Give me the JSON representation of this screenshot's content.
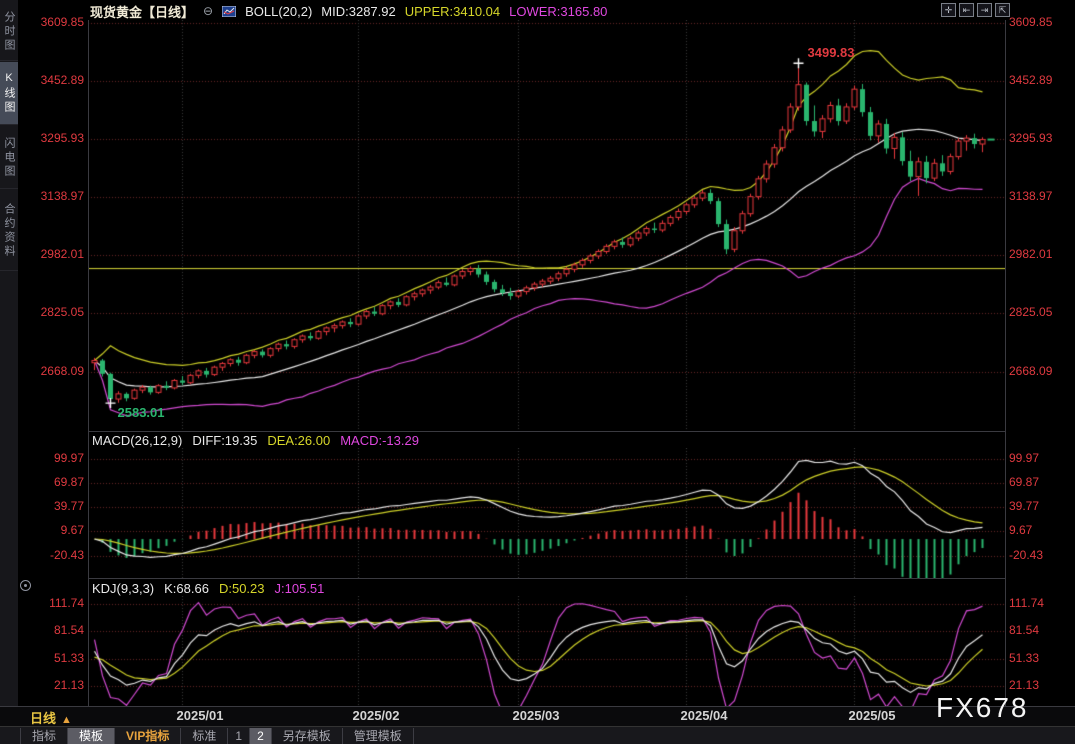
{
  "header": {
    "title": "现货黄金",
    "period_tag": "【日线】",
    "collapse_icon": "⊖",
    "boll_label": "BOLL(20,2)",
    "mid_label": "MID:3287.92",
    "upper_label": "UPPER:3410.04",
    "lower_label": "LOWER:3165.80",
    "window_icons": [
      "十字光标",
      "区间放大",
      "缩放",
      "还原"
    ]
  },
  "sidebar": {
    "tabs": [
      {
        "label": "分时图",
        "selected": false
      },
      {
        "label": "K线图",
        "selected": true
      },
      {
        "label": "闪电图",
        "selected": false
      },
      {
        "label": "合约资料",
        "selected": false
      }
    ]
  },
  "macd_header": {
    "label": "MACD(26,12,9)",
    "diff": "DIFF:19.35",
    "dea": "DEA:26.00",
    "macd": "MACD:-13.29"
  },
  "kdj_header": {
    "label": "KDJ(9,3,3)",
    "k": "K:68.66",
    "d": "D:50.23",
    "j": "J:105.51"
  },
  "annotations": {
    "high_label": "3499.83",
    "low_label": "2583.01"
  },
  "x_axis": {
    "period_label": "日线",
    "period_arrow": "▲"
  },
  "watermark": "FX678",
  "bottom_bar": {
    "items": [
      {
        "label": "指标"
      },
      {
        "label": "模板",
        "selected": true
      },
      {
        "label": "VIP指标",
        "vip": true
      },
      {
        "label": "标准"
      },
      {
        "label": "1",
        "num": true
      },
      {
        "label": "2",
        "num": true,
        "selected": true
      },
      {
        "label": "另存模板"
      },
      {
        "label": "管理模板"
      }
    ]
  },
  "colors": {
    "up": "#e8383d",
    "down": "#2ab56e",
    "axis_red": "#e03a40",
    "band_upper": "#cdd028",
    "band_mid": "#e9e9e9",
    "band_lower": "#d24ad2",
    "grid_red": "#6a2626",
    "grid_gray": "#3a3a3a",
    "hline_yellow": "#d8d838",
    "hist_up": "#e8383d",
    "hist_down": "#2ab56e",
    "diff_line": "#e9e9e9",
    "dea_line": "#cdd028",
    "k_line": "#e9e9e9",
    "d_line": "#cdd028",
    "j_line": "#d24ad2",
    "cross_marker": "#ffffff"
  },
  "chart_data": {
    "type": "candlestick",
    "title": "现货黄金 日线 (Spot Gold Daily) with BOLL(20,2), MACD(26,12,9), KDJ(9,3,3)",
    "y_ticks_main": [
      3609.85,
      3452.89,
      3295.93,
      3138.97,
      2982.01,
      2825.05,
      2668.09
    ],
    "y_ticks_macd": [
      99.97,
      69.87,
      39.77,
      9.67,
      -20.43
    ],
    "y_ticks_kdj": [
      111.74,
      81.54,
      51.33,
      21.13
    ],
    "x_months": [
      {
        "label": "2025/01",
        "index": 11
      },
      {
        "label": "2025/02",
        "index": 33
      },
      {
        "label": "2025/03",
        "index": 53
      },
      {
        "label": "2025/04",
        "index": 74
      },
      {
        "label": "2025/05",
        "index": 95
      }
    ],
    "hline": 2946,
    "annotations": {
      "high": {
        "index": 88,
        "price": 3499.83
      },
      "low": {
        "index": 2,
        "price": 2583.01
      }
    },
    "boll": {
      "period": 20,
      "mult": 2
    },
    "macd": {
      "fast": 12,
      "slow": 26,
      "signal": 9
    },
    "kdj": {
      "n": 9,
      "m1": 3,
      "m2": 3
    },
    "ohlc": [
      [
        2692,
        2705,
        2672,
        2698
      ],
      [
        2698,
        2702,
        2655,
        2662
      ],
      [
        2662,
        2665,
        2583.01,
        2594
      ],
      [
        2594,
        2615,
        2584,
        2608
      ],
      [
        2608,
        2612,
        2588,
        2596
      ],
      [
        2596,
        2622,
        2592,
        2618
      ],
      [
        2618,
        2632,
        2610,
        2626
      ],
      [
        2626,
        2630,
        2606,
        2612
      ],
      [
        2612,
        2634,
        2608,
        2630
      ],
      [
        2630,
        2642,
        2618,
        2624
      ],
      [
        2624,
        2648,
        2620,
        2644
      ],
      [
        2644,
        2656,
        2632,
        2638
      ],
      [
        2638,
        2662,
        2634,
        2658
      ],
      [
        2658,
        2674,
        2650,
        2670
      ],
      [
        2670,
        2678,
        2652,
        2660
      ],
      [
        2660,
        2684,
        2656,
        2680
      ],
      [
        2680,
        2694,
        2670,
        2690
      ],
      [
        2690,
        2704,
        2682,
        2700
      ],
      [
        2700,
        2708,
        2684,
        2692
      ],
      [
        2692,
        2716,
        2688,
        2712
      ],
      [
        2712,
        2726,
        2704,
        2722
      ],
      [
        2722,
        2728,
        2706,
        2712
      ],
      [
        2712,
        2734,
        2706,
        2730
      ],
      [
        2730,
        2746,
        2722,
        2742
      ],
      [
        2742,
        2752,
        2728,
        2736
      ],
      [
        2736,
        2758,
        2730,
        2754
      ],
      [
        2754,
        2768,
        2746,
        2764
      ],
      [
        2764,
        2774,
        2752,
        2758
      ],
      [
        2758,
        2780,
        2754,
        2776
      ],
      [
        2776,
        2790,
        2766,
        2786
      ],
      [
        2786,
        2798,
        2774,
        2792
      ],
      [
        2792,
        2806,
        2784,
        2802
      ],
      [
        2802,
        2812,
        2788,
        2796
      ],
      [
        2796,
        2822,
        2792,
        2818
      ],
      [
        2818,
        2834,
        2810,
        2830
      ],
      [
        2830,
        2842,
        2818,
        2824
      ],
      [
        2824,
        2850,
        2820,
        2846
      ],
      [
        2846,
        2860,
        2836,
        2856
      ],
      [
        2856,
        2866,
        2842,
        2848
      ],
      [
        2848,
        2874,
        2844,
        2870
      ],
      [
        2870,
        2884,
        2860,
        2878
      ],
      [
        2878,
        2892,
        2870,
        2888
      ],
      [
        2888,
        2902,
        2878,
        2896
      ],
      [
        2896,
        2914,
        2890,
        2908
      ],
      [
        2908,
        2922,
        2898,
        2902
      ],
      [
        2902,
        2930,
        2898,
        2926
      ],
      [
        2926,
        2944,
        2918,
        2938
      ],
      [
        2938,
        2952,
        2928,
        2946
      ],
      [
        2946,
        2956,
        2922,
        2930
      ],
      [
        2930,
        2938,
        2902,
        2910
      ],
      [
        2910,
        2916,
        2882,
        2890
      ],
      [
        2890,
        2902,
        2872,
        2880
      ],
      [
        2880,
        2894,
        2862,
        2872
      ],
      [
        2872,
        2890,
        2866,
        2884
      ],
      [
        2884,
        2900,
        2876,
        2894
      ],
      [
        2894,
        2910,
        2886,
        2904
      ],
      [
        2904,
        2918,
        2896,
        2912
      ],
      [
        2912,
        2926,
        2904,
        2920
      ],
      [
        2920,
        2938,
        2912,
        2932
      ],
      [
        2932,
        2950,
        2924,
        2944
      ],
      [
        2944,
        2962,
        2936,
        2956
      ],
      [
        2956,
        2974,
        2948,
        2968
      ],
      [
        2968,
        2986,
        2960,
        2980
      ],
      [
        2980,
        2998,
        2972,
        2992
      ],
      [
        2992,
        3012,
        2986,
        3006
      ],
      [
        3006,
        3024,
        2998,
        3018
      ],
      [
        3018,
        3030,
        3002,
        3010
      ],
      [
        3010,
        3034,
        3004,
        3028
      ],
      [
        3028,
        3048,
        3020,
        3042
      ],
      [
        3042,
        3060,
        3034,
        3054
      ],
      [
        3054,
        3070,
        3042,
        3050
      ],
      [
        3050,
        3076,
        3044,
        3068
      ],
      [
        3068,
        3090,
        3060,
        3084
      ],
      [
        3084,
        3108,
        3076,
        3100
      ],
      [
        3100,
        3124,
        3092,
        3118
      ],
      [
        3118,
        3142,
        3110,
        3136
      ],
      [
        3136,
        3158,
        3128,
        3150
      ],
      [
        3150,
        3160,
        3120,
        3128
      ],
      [
        3128,
        3136,
        3058,
        3066
      ],
      [
        3066,
        3078,
        2985,
        2998
      ],
      [
        2998,
        3058,
        2990,
        3048
      ],
      [
        3048,
        3102,
        3040,
        3094
      ],
      [
        3094,
        3148,
        3086,
        3140
      ],
      [
        3140,
        3196,
        3132,
        3188
      ],
      [
        3188,
        3238,
        3178,
        3228
      ],
      [
        3228,
        3282,
        3218,
        3272
      ],
      [
        3272,
        3330,
        3262,
        3320
      ],
      [
        3320,
        3392,
        3312,
        3382
      ],
      [
        3382,
        3499.83,
        3372,
        3442
      ],
      [
        3442,
        3448,
        3332,
        3344
      ],
      [
        3344,
        3386,
        3302,
        3316
      ],
      [
        3316,
        3360,
        3298,
        3350
      ],
      [
        3350,
        3396,
        3340,
        3386
      ],
      [
        3386,
        3404,
        3332,
        3344
      ],
      [
        3344,
        3392,
        3336,
        3382
      ],
      [
        3382,
        3440,
        3374,
        3430
      ],
      [
        3430,
        3444,
        3356,
        3368
      ],
      [
        3368,
        3382,
        3292,
        3304
      ],
      [
        3304,
        3346,
        3286,
        3336
      ],
      [
        3336,
        3350,
        3256,
        3270
      ],
      [
        3270,
        3312,
        3242,
        3300
      ],
      [
        3300,
        3314,
        3224,
        3236
      ],
      [
        3236,
        3264,
        3182,
        3194
      ],
      [
        3194,
        3246,
        3142,
        3234
      ],
      [
        3234,
        3250,
        3176,
        3190
      ],
      [
        3190,
        3242,
        3182,
        3230
      ],
      [
        3230,
        3252,
        3196,
        3208
      ],
      [
        3208,
        3256,
        3200,
        3248
      ],
      [
        3248,
        3298,
        3240,
        3290
      ],
      [
        3290,
        3306,
        3264,
        3298
      ],
      [
        3298,
        3310,
        3270,
        3282
      ],
      [
        3282,
        3300,
        3260,
        3294
      ]
    ],
    "last_close": 3294
  }
}
